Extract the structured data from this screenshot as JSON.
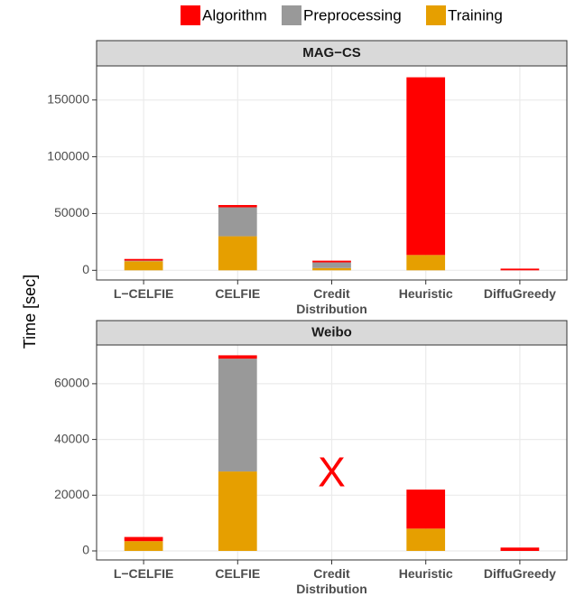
{
  "chart_data": [
    {
      "type": "bar",
      "stacked": true,
      "title": "MAG−CS",
      "ylabel": "Time [sec]",
      "categories": [
        "L−CELFIE",
        "CELFIE",
        "Credit\nDistribution",
        "Heuristic",
        "DiffuGreedy"
      ],
      "series": [
        {
          "name": "Algorithm",
          "color": "#ff0000",
          "values": [
            1500,
            2000,
            1500,
            156500,
            1500
          ]
        },
        {
          "name": "Preprocessing",
          "color": "#999999",
          "values": [
            500,
            25500,
            5000,
            0,
            0
          ]
        },
        {
          "name": "Training",
          "color": "#e69f00",
          "values": [
            8000,
            30000,
            2000,
            13500,
            0
          ]
        }
      ],
      "ylim": [
        -8500,
        180000
      ],
      "yticks": [
        0,
        50000,
        100000,
        150000
      ],
      "grid": true
    },
    {
      "type": "bar",
      "stacked": true,
      "title": "Weibo",
      "annotation": "X",
      "categories": [
        "L−CELFIE",
        "CELFIE",
        "Credit\nDistribution",
        "Heuristic",
        "DiffuGreedy"
      ],
      "series": [
        {
          "name": "Algorithm",
          "color": "#ff0000",
          "values": [
            1500,
            1200,
            null,
            14000,
            1200
          ]
        },
        {
          "name": "Preprocessing",
          "color": "#999999",
          "values": [
            0,
            40500,
            null,
            0,
            0
          ]
        },
        {
          "name": "Training",
          "color": "#e69f00",
          "values": [
            3500,
            28500,
            null,
            8000,
            0
          ]
        }
      ],
      "ylim": [
        -3240,
        73900
      ],
      "yticks": [
        0,
        20000,
        40000,
        60000
      ],
      "grid": true
    }
  ]
}
